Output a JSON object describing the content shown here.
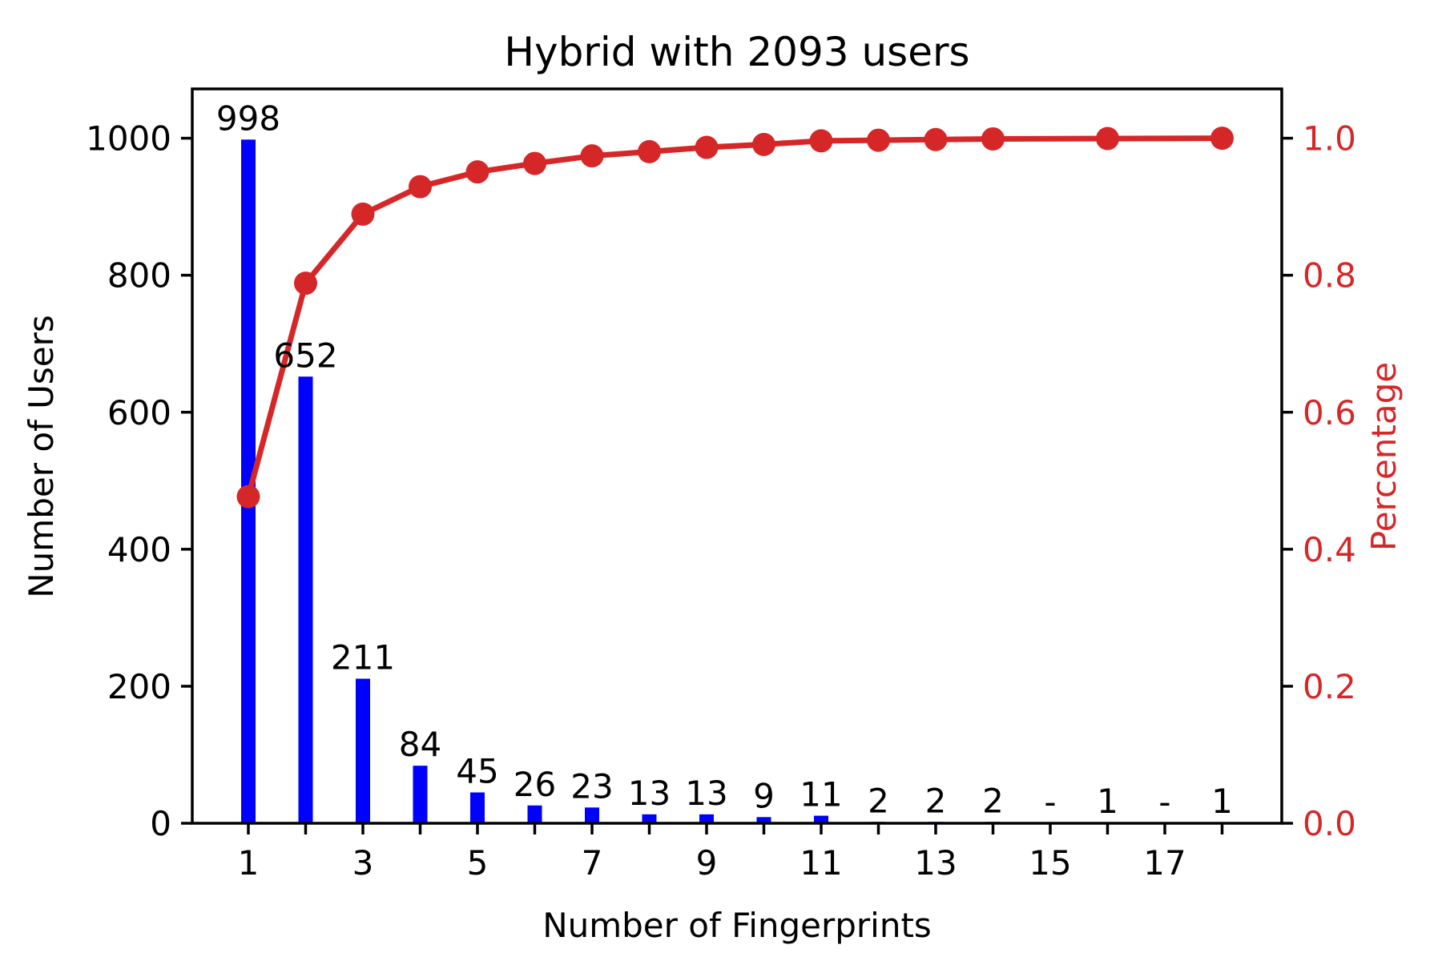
{
  "figure": {
    "title": "Hybrid with 2093 users",
    "xlabel": "Number of Fingerprints",
    "ylabel_left": "Number of Users",
    "ylabel_right": "Percentage"
  },
  "colors": {
    "background": "#ffffff",
    "bar": "#0000ff",
    "line": "#d62728",
    "axis": "#000000",
    "left_tick_label": "#000000",
    "right_tick_label": "#d62728",
    "x_tick_label": "#000000",
    "title": "#000000"
  },
  "chart_data": {
    "type": "bar",
    "subtype": "pareto (bar + cumulative percentage line, twin y axes)",
    "title": "Hybrid with 2093 users",
    "xlabel": "Number of Fingerprints",
    "ylabel_left": "Number of Users",
    "ylabel_right": "Percentage",
    "total_users": 2093,
    "x": [
      1,
      2,
      3,
      4,
      5,
      6,
      7,
      8,
      9,
      10,
      11,
      12,
      13,
      14,
      15,
      16,
      17,
      18
    ],
    "series": [
      {
        "name": "Number of Users",
        "type": "bar",
        "axis": "left",
        "color": "#0000ff",
        "values": [
          998,
          652,
          211,
          84,
          45,
          26,
          23,
          13,
          13,
          9,
          11,
          2,
          2,
          2,
          0,
          1,
          0,
          1
        ],
        "bar_labels": [
          "998",
          "652",
          "211",
          "84",
          "45",
          "26",
          "23",
          "13",
          "13",
          "9",
          "11",
          "2",
          "2",
          "2",
          "-",
          "1",
          "-",
          "1"
        ]
      },
      {
        "name": "Percentage",
        "type": "line",
        "axis": "right",
        "color": "#d62728",
        "marker": "circle",
        "x": [
          1,
          2,
          3,
          4,
          5,
          6,
          7,
          8,
          9,
          10,
          11,
          12,
          13,
          14,
          16,
          18
        ],
        "values": [
          0.4768,
          0.7883,
          0.8892,
          0.9293,
          0.9508,
          0.9632,
          0.9742,
          0.9804,
          0.9866,
          0.9909,
          0.9962,
          0.9971,
          0.9981,
          0.999,
          0.9995,
          1.0
        ]
      }
    ],
    "x_ticks": [
      1,
      2,
      3,
      4,
      5,
      6,
      7,
      8,
      9,
      10,
      11,
      12,
      13,
      14,
      15,
      16,
      17,
      18
    ],
    "x_tick_label_positions": [
      1,
      3,
      5,
      7,
      9,
      11,
      13,
      15,
      17
    ],
    "x_tick_labels": [
      "1",
      "3",
      "5",
      "7",
      "9",
      "11",
      "13",
      "15",
      "17"
    ],
    "y_tick_values_left": [
      0,
      200,
      400,
      600,
      800,
      1000
    ],
    "y_tick_labels_left": [
      "0",
      "200",
      "400",
      "600",
      "800",
      "1000"
    ],
    "y_tick_values_right": [
      0.0,
      0.2,
      0.4,
      0.6,
      0.8,
      1.0
    ],
    "y_tick_labels_right": [
      "0.0",
      "0.2",
      "0.4",
      "0.6",
      "0.8",
      "1.0"
    ],
    "ylim_left": [
      0,
      1072
    ],
    "ylim_right": [
      0,
      1.072
    ],
    "xlim": [
      0.03,
      19.08
    ],
    "grid": false,
    "legend": null
  }
}
